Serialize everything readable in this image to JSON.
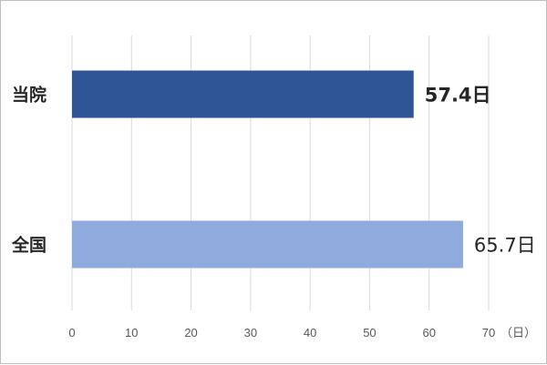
{
  "chart_data": {
    "type": "bar",
    "orientation": "horizontal",
    "categories": [
      "当院",
      "全国"
    ],
    "values": [
      57.4,
      65.7
    ],
    "data_labels": [
      "57.4日",
      "65.7日"
    ],
    "unit_label": "（日）",
    "xlim": [
      0,
      70
    ],
    "xticks": [
      0,
      10,
      20,
      30,
      40,
      50,
      60,
      70
    ],
    "grid": true,
    "legend": "none",
    "colors": [
      "#2f5597",
      "#8faadc"
    ],
    "data_label_bold": [
      true,
      false
    ]
  }
}
